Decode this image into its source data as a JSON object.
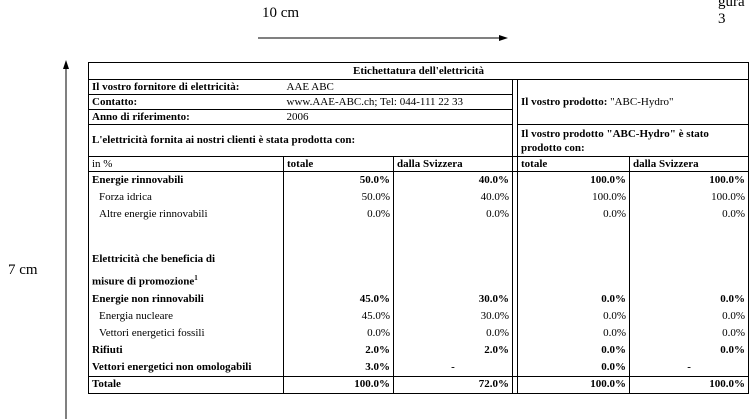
{
  "figure_label": "gura 3",
  "width_label": "10 cm",
  "height_label": "7 cm",
  "table": {
    "title": "Etichettatura dell'elettricità",
    "supplier_label": "Il vostro fornitore di elettricità:",
    "supplier": "AAE ABC",
    "contact_label": "Contatto:",
    "contact": "www.AAE-ABC.ch; Tel: 044-111 22 33",
    "year_label": "Anno di riferimento:",
    "year": "2006",
    "product_label": "Il vostro prodotto:",
    "product": "\"ABC-Hydro\"",
    "produced_with": "L'elettricità fornita ai nostri clienti è stata prodotta con:",
    "product_produced_with": "Il vostro prodotto \"ABC-Hydro\" è stato prodotto con:",
    "unit": "in %",
    "columns": [
      "totale",
      "dalla Svizzera",
      "totale",
      "dalla Svizzera"
    ],
    "rows": [
      {
        "label": "Energie rinnovabili",
        "bold": true,
        "values": [
          "50.0%",
          "40.0%",
          "100.0%",
          "100.0%"
        ]
      },
      {
        "label": "Forza idrica",
        "indent": true,
        "values": [
          "50.0%",
          "40.0%",
          "100.0%",
          "100.0%"
        ]
      },
      {
        "label": "Altre energie rinnovabili",
        "indent": true,
        "values": [
          "0.0%",
          "0.0%",
          "0.0%",
          "0.0%"
        ]
      },
      {
        "label_lines": [
          "Elettricità che beneficia di",
          "misure di promozione"
        ],
        "note": "1",
        "bold": true,
        "spaced": true
      },
      {
        "label": "Energie non rinnovabili",
        "bold": true,
        "values": [
          "45.0%",
          "30.0%",
          "0.0%",
          "0.0%"
        ]
      },
      {
        "label": "Energia nucleare",
        "indent": true,
        "values": [
          "45.0%",
          "30.0%",
          "0.0%",
          "0.0%"
        ]
      },
      {
        "label": "Vettori energetici fossili",
        "indent": true,
        "values": [
          "0.0%",
          "0.0%",
          "0.0%",
          "0.0%"
        ]
      },
      {
        "label": "Rifiuti",
        "bold": true,
        "values": [
          "2.0%",
          "2.0%",
          "0.0%",
          "0.0%"
        ]
      },
      {
        "label": "Vettori energetici non omologabili",
        "bold": true,
        "values": [
          "3.0%",
          "-",
          "0.0%",
          "-"
        ]
      },
      {
        "label": "Totale",
        "bold": true,
        "total": true,
        "values": [
          "100.0%",
          "72.0%",
          "100.0%",
          "100.0%"
        ]
      }
    ]
  }
}
